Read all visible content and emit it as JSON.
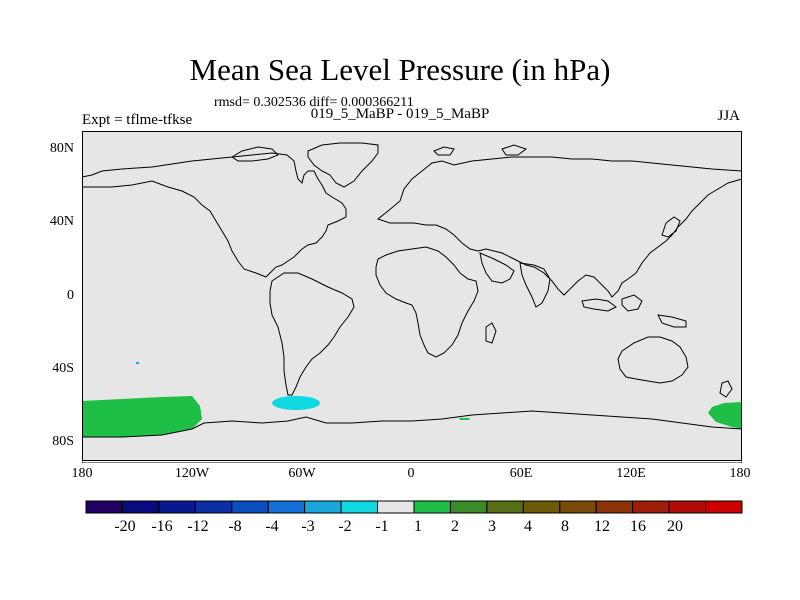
{
  "title": "Mean Sea Level Pressure (in hPa)",
  "stats": "rmsd= 0.302536 diff= 0.000366211",
  "experiment": "Expt = tflme-tfkse",
  "comparison": "019_5_MaBP - 019_5_MaBP",
  "season": "JJA",
  "map": {
    "projection": "cylindrical equidistant",
    "lon_range": [
      -180,
      180
    ],
    "lat_range": [
      -90,
      90
    ],
    "background_color": "#e6e6e6",
    "coastline_color": "#000000",
    "y_ticks": [
      "80N",
      "40N",
      "0",
      "40S",
      "80S"
    ],
    "x_ticks": [
      "180",
      "120W",
      "60W",
      "0",
      "60E",
      "120E",
      "180"
    ],
    "anomaly_regions": [
      {
        "name": "south-pacific-positive",
        "value_bin": "1 to 2",
        "color": "#1fbf47",
        "lon": [
          -180,
          -115
        ],
        "lat": [
          -75,
          -58
        ]
      },
      {
        "name": "drake-passage-negative",
        "value_bin": "-2 to -1",
        "color": "#10d8e0",
        "lon": [
          -75,
          -50
        ],
        "lat": [
          -62,
          -56
        ]
      },
      {
        "name": "west-pacific-positive",
        "value_bin": "1 to 2",
        "color": "#1fbf47",
        "lon": [
          162,
          180
        ],
        "lat": [
          -72,
          -57
        ]
      },
      {
        "name": "south-atlantic-positive",
        "value_bin": "1 to 2",
        "color": "#1fbf47",
        "lon": [
          25,
          32
        ],
        "lat": [
          -68,
          -66
        ]
      }
    ]
  },
  "colorbar": {
    "colors": [
      "#200060",
      "#0a0a80",
      "#08188f",
      "#0a2fa6",
      "#0c4ec2",
      "#1470d8",
      "#18a8dc",
      "#10d8e0",
      "#e6e6e6",
      "#1fbf47",
      "#3a8c28",
      "#566e14",
      "#6b5a08",
      "#7a4a08",
      "#8c3308",
      "#a01e08",
      "#b00d08",
      "#cc0000"
    ],
    "labels": [
      "-20",
      "-16",
      "-12",
      "-8",
      "-4",
      "-3",
      "-2",
      "-1",
      "1",
      "2",
      "3",
      "4",
      "8",
      "12",
      "16",
      "20"
    ]
  }
}
